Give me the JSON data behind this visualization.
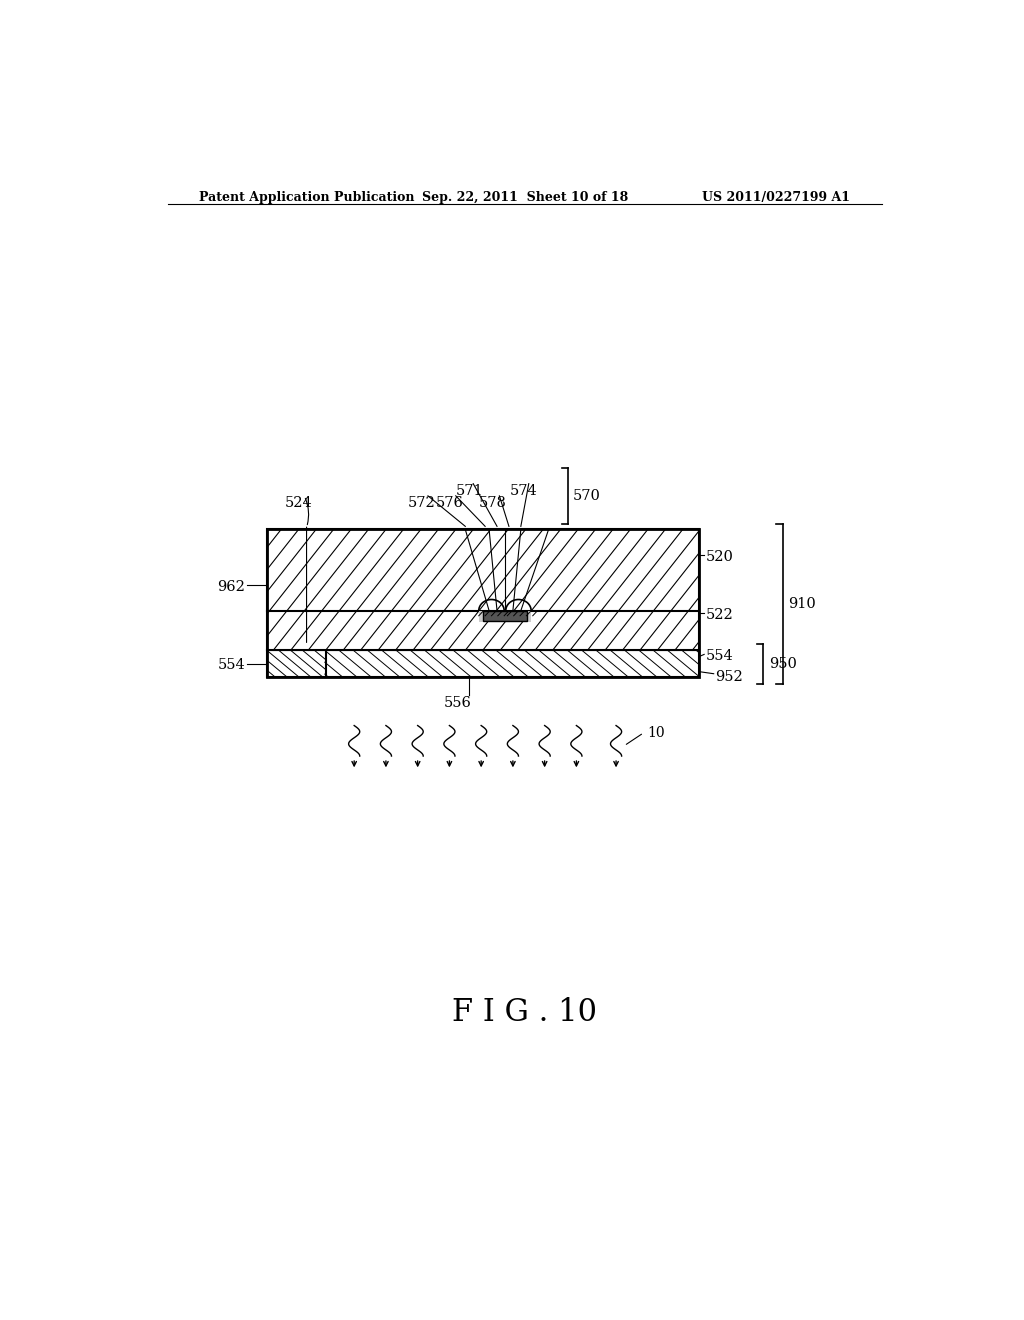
{
  "bg_color": "#ffffff",
  "header_left": "Patent Application Publication",
  "header_mid": "Sep. 22, 2011  Sheet 10 of 18",
  "header_right": "US 2011/0227199 A1",
  "fig_label": "F I G . 10"
}
